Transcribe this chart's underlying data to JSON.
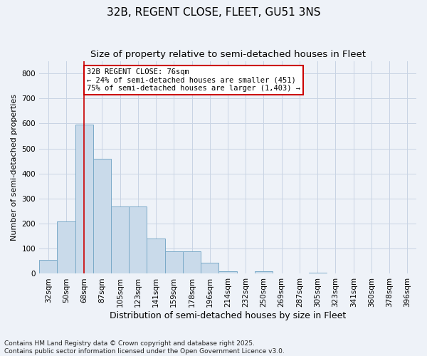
{
  "title": "32B, REGENT CLOSE, FLEET, GU51 3NS",
  "subtitle": "Size of property relative to semi-detached houses in Fleet",
  "xlabel": "Distribution of semi-detached houses by size in Fleet",
  "ylabel": "Number of semi-detached properties",
  "categories": [
    "32sqm",
    "50sqm",
    "68sqm",
    "87sqm",
    "105sqm",
    "123sqm",
    "141sqm",
    "159sqm",
    "178sqm",
    "196sqm",
    "214sqm",
    "232sqm",
    "250sqm",
    "269sqm",
    "287sqm",
    "305sqm",
    "323sqm",
    "341sqm",
    "360sqm",
    "378sqm",
    "396sqm"
  ],
  "values": [
    55,
    210,
    595,
    460,
    270,
    270,
    140,
    90,
    90,
    45,
    10,
    0,
    10,
    0,
    0,
    5,
    0,
    0,
    0,
    0,
    0
  ],
  "bar_color": "#c9daea",
  "bar_edge_color": "#7aaac8",
  "grid_color": "#c8d4e4",
  "background_color": "#eef2f8",
  "vline_x": 2.0,
  "vline_color": "#cc0000",
  "annotation_text": "32B REGENT CLOSE: 76sqm\n← 24% of semi-detached houses are smaller (451)\n75% of semi-detached houses are larger (1,403) →",
  "annotation_box_color": "#ffffff",
  "annotation_box_edge": "#cc0000",
  "ylim": [
    0,
    850
  ],
  "yticks": [
    0,
    100,
    200,
    300,
    400,
    500,
    600,
    700,
    800
  ],
  "footer": "Contains HM Land Registry data © Crown copyright and database right 2025.\nContains public sector information licensed under the Open Government Licence v3.0.",
  "title_fontsize": 11,
  "subtitle_fontsize": 9.5,
  "xlabel_fontsize": 9,
  "ylabel_fontsize": 8,
  "tick_fontsize": 7.5,
  "footer_fontsize": 6.5,
  "annot_fontsize": 7.5
}
